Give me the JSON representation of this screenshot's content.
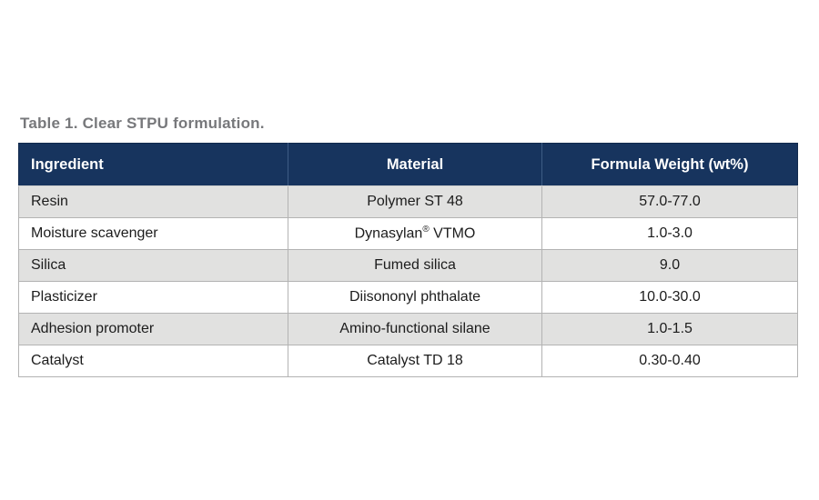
{
  "page": {
    "background": "#FFFFFF"
  },
  "colors": {
    "title_gray": "#77787B",
    "header_navy": "#17345E",
    "header_divider_blue": "#3E5C85",
    "row_shaded_gray": "#E1E1E0",
    "row_plain_white": "#FFFFFF",
    "row_border_gray": "#B3B3B3",
    "body_text": "#1C1C1C"
  },
  "title": "Table 1. Clear STPU formulation.",
  "table": {
    "columns": [
      {
        "label": "Ingredient"
      },
      {
        "label": "Material"
      },
      {
        "label": "Formula Weight (wt%)"
      }
    ],
    "rows": [
      {
        "ingredient": "Resin",
        "material": "Polymer ST 48",
        "weight": "57.0-77.0"
      },
      {
        "ingredient": "Moisture scavenger",
        "material": "Dynasylan® VTMO",
        "weight": "1.0-3.0"
      },
      {
        "ingredient": "Silica",
        "material": "Fumed silica",
        "weight": "9.0"
      },
      {
        "ingredient": "Plasticizer",
        "material": "Diisononyl phthalate",
        "weight": "10.0-30.0"
      },
      {
        "ingredient": "Adhesion promoter",
        "material": "Amino-functional silane",
        "weight": "1.0-1.5"
      },
      {
        "ingredient": "Catalyst",
        "material": "Catalyst TD 18",
        "weight": "0.30-0.40"
      }
    ]
  }
}
